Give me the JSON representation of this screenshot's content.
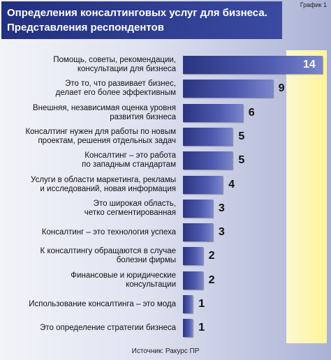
{
  "chart_data": {
    "type": "hbar",
    "title": "Определения консалтинговых услуг для бизнеса.\nПредставления респондентов",
    "figure_label": "График 1",
    "source": "Источник: Ракурс ПР",
    "categories": [
      "Помощь, советы, рекомендации,\nконсультации для бизнеса",
      "Это то, что развивает бизнес,\nделает его более эффективным",
      "Внешняя, независимая оценка уровня\nразвития бизнеса",
      "Консалтинг нужен для работы по новым\nпроектам, решения отдельных задач",
      "Консалтинг – это работа\nпо западным стандартам",
      "Услуги в области маркетинга, рекламы\nи исследований, новая информация",
      "Это широкая область,\nчетко сегментированная",
      "Консалтинг – это технология успеха",
      "К консалтингу обращаются в случае\nболезни фирмы",
      "Финансовые и юридические\nконсультации",
      "Использование консалтинга – это мода",
      "Это определение стратегии бизнеса"
    ],
    "values": [
      14,
      9,
      6,
      5,
      5,
      4,
      3,
      3,
      2,
      2,
      1,
      1
    ]
  }
}
